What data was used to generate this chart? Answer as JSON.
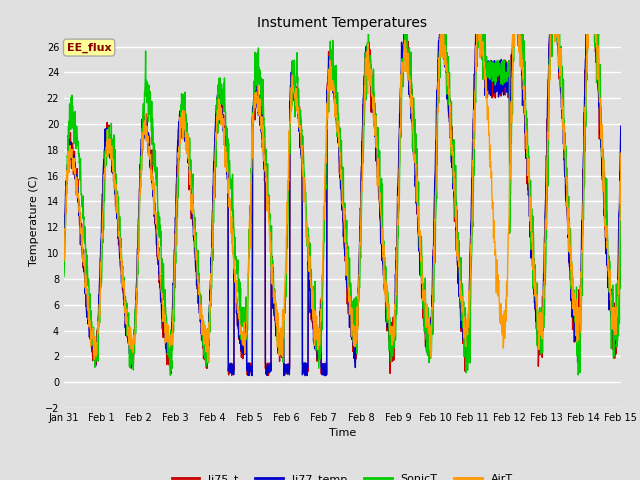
{
  "title": "Instument Temperatures",
  "xlabel": "Time",
  "ylabel": "Temperature (C)",
  "ylim": [
    -2,
    27
  ],
  "yticks": [
    -2,
    0,
    2,
    4,
    6,
    8,
    10,
    12,
    14,
    16,
    18,
    20,
    22,
    24,
    26
  ],
  "bg_color": "#e0e0e0",
  "annotation_text": "EE_flux",
  "annotation_bg": "#ffff99",
  "annotation_edge": "#aaaaaa",
  "annotation_text_color": "#880000",
  "series_colors": [
    "#cc0000",
    "#0000cc",
    "#00cc00",
    "#ff9900"
  ],
  "series_lw": [
    1.0,
    1.0,
    1.0,
    1.0
  ],
  "legend_items": [
    "li75_t",
    "li77_temp",
    "SonicT",
    "AirT"
  ],
  "x_tick_labels": [
    "Jan 31",
    "Feb 1",
    "Feb 2",
    "Feb 3",
    "Feb 4",
    "Feb 5",
    "Feb 6",
    "Feb 7",
    "Feb 8",
    "Feb 9",
    "Feb 10",
    "Feb 11",
    "Feb 12",
    "Feb 13",
    "Feb 14",
    "Feb 15"
  ],
  "n_points": 2000
}
